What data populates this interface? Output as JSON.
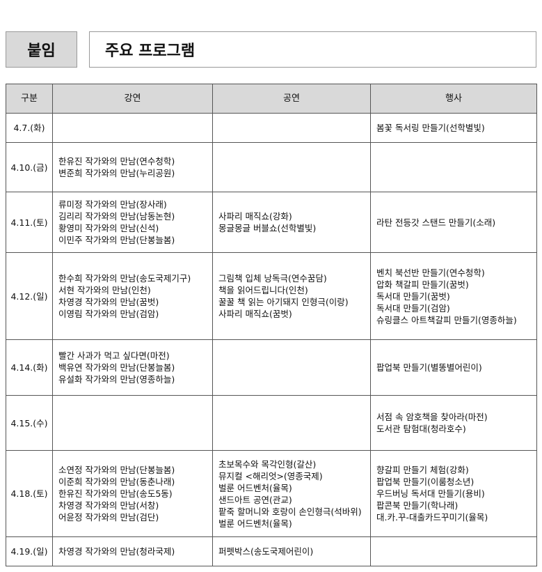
{
  "header": {
    "label": "붙임",
    "title": "주요 프로그램"
  },
  "table": {
    "columns": [
      "구분",
      "강연",
      "공연",
      "행사"
    ],
    "rows": [
      {
        "date": "4.7.(화)",
        "lectures": [],
        "performances": [],
        "events": [
          "봄꽃 독서링 만들기(선학별빛)"
        ]
      },
      {
        "date": "4.10.(금)",
        "lectures": [
          "한유진 작가와의 만남(연수청학)",
          "변준희 작가와의 만남(누리공원)"
        ],
        "performances": [],
        "events": []
      },
      {
        "date": "4.11.(토)",
        "lectures": [
          "류미정 작가와의 만남(장사래)",
          "김리리 작가와의 만남(남동논현)",
          "황영미 작가와의 만남(신석)",
          "이민주 작가와의 만남(단봉늘봄)"
        ],
        "performances": [
          "사파리 매직쇼(강화)",
          "몽글몽글 버블쇼(선학별빛)"
        ],
        "events": [
          "라탄 전등갓 스탠드 만들기(소래)"
        ]
      },
      {
        "date": "4.12.(일)",
        "lectures": [
          "한수희 작가와의 만남(송도국제기구)",
          "서현 작가와의 만남(인천)",
          "차영경 작가와의 만남(꿈벗)",
          "이영림 작가와의 만남(검암)"
        ],
        "performances": [
          "그림책 입체 낭독극(연수꿈담)",
          "책을 읽어드립니다(인천)",
          "꿀꿀 책 읽는 아기돼지 인형극(이랑)",
          "사파리 매직쇼(꿈벗)"
        ],
        "events": [
          "벤치 북선반 만들기(연수청학)",
          "압화 책갈피 만들기(꿈벗)",
          "독서대 만들기(꿈벗)",
          "독서대 만들기(검암)",
          "슈링클스 아트책갈피 만들기(영종하늘)"
        ]
      },
      {
        "date": "4.14.(화)",
        "lectures": [
          "빨간 사과가 먹고 싶다면(마전)",
          "백유연 작가와의 만남(단봉늘봄)",
          "유설화 작가와의 만남(영종하늘)"
        ],
        "performances": [],
        "events": [
          "팝업북 만들기(별똥별어린이)"
        ]
      },
      {
        "date": "4.15.(수)",
        "lectures": [],
        "performances": [],
        "events": [
          "서점 속 암호책을 찾아라(마전)",
          "도서관 탐험대(청라호수)"
        ]
      },
      {
        "date": "4.18.(토)",
        "lectures": [
          "소연정 작가와의 만남(단봉늘봄)",
          "이준희 작가와의 만남(동춘나래)",
          "한유진 작가와의 만남(송도5동)",
          "차영경 작가와의 만남(서창)",
          "어윤정 작가와의 만남(검단)"
        ],
        "performances": [
          "초보목수와 목각인형(갈산)",
          "뮤지컬 <해리엇>(영종국제)",
          "벌룬 어드벤처(율목)",
          "샌드아트 공연(관교)",
          "팥죽 할머니와 호랑이 손인형극(석바위)",
          "벌룬 어드벤처(율목)"
        ],
        "events": [
          "향갈피 만들기 체험(강화)",
          "팝업북 만들기(이룸청소년)",
          "우드버닝 독서대 만들기(용비)",
          "팝콘북 만들기(학나래)",
          "대.카.꾸-대출카드꾸미기(율목)"
        ]
      },
      {
        "date": "4.19.(일)",
        "lectures": [
          "차영경 작가와의 만남(청라국제)"
        ],
        "performances": [
          "퍼펫박스(송도국제어린이)"
        ],
        "events": []
      }
    ]
  }
}
